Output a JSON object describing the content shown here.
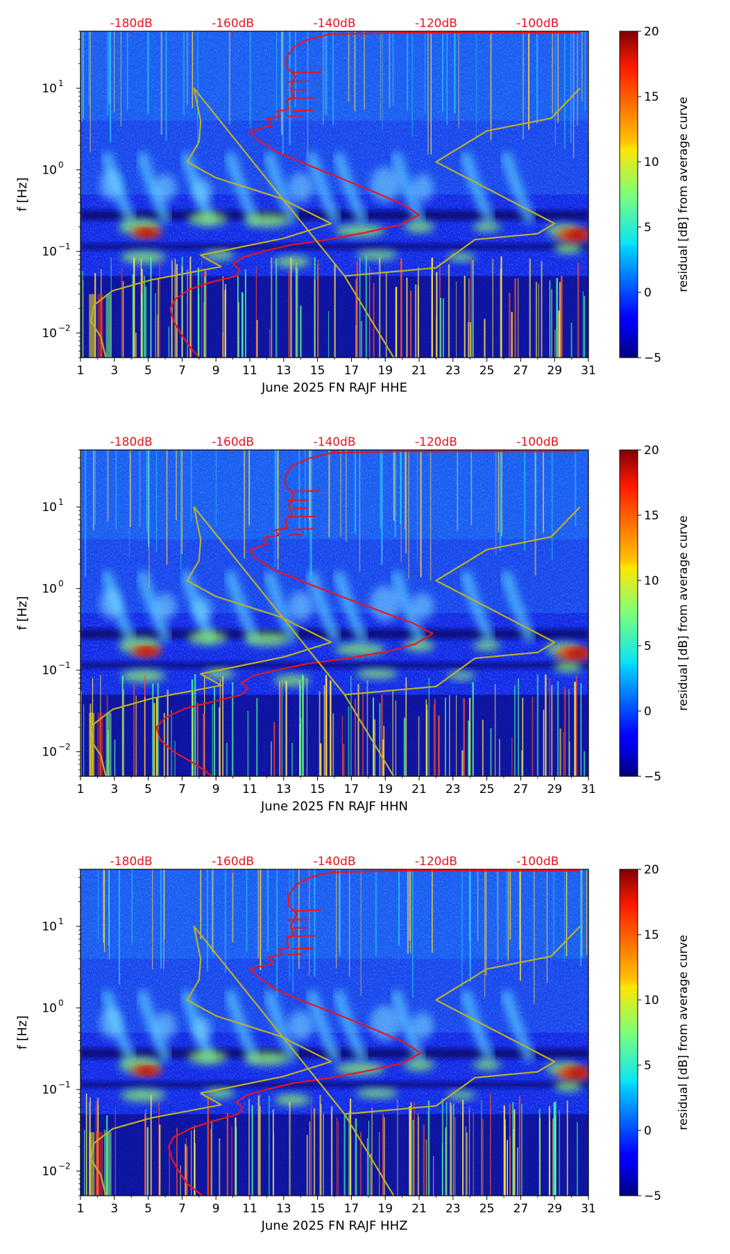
{
  "chart_data": [
    {
      "type": "heatmap",
      "title": "",
      "xlabel": "June 2025 FN RAJF  HHE",
      "ylabel": "f [Hz]",
      "x_ticks": [
        "1",
        "3",
        "5",
        "7",
        "9",
        "11",
        "13",
        "15",
        "17",
        "19",
        "21",
        "23",
        "25",
        "27",
        "29",
        "31"
      ],
      "xlim": [
        1,
        31
      ],
      "ylim": [
        0.005,
        50
      ],
      "y_scale": "log",
      "y_ticks": [
        {
          "value": 0.01,
          "base": "10",
          "exp": "−2"
        },
        {
          "value": 0.1,
          "base": "10",
          "exp": "−1"
        },
        {
          "value": 1,
          "base": "10",
          "exp": "0"
        },
        {
          "value": 10,
          "base": "10",
          "exp": "1"
        }
      ],
      "top_axis_labels": [
        "-180dB",
        "-160dB",
        "-140dB",
        "-120dB",
        "-100dB"
      ],
      "top_axis_values": [
        4,
        10,
        16,
        22,
        28
      ],
      "colorbar": {
        "label": "residual [dB] from average curve",
        "ticks": [
          "20",
          "15",
          "10",
          "5",
          "0",
          "−5"
        ],
        "range": [
          -5,
          20
        ]
      },
      "series": [
        {
          "name": "average PSD",
          "color": "#e8141e",
          "points": [
            [
              8.0,
              0.005
            ],
            [
              7.4,
              0.007
            ],
            [
              6.9,
              0.01
            ],
            [
              6.5,
              0.014
            ],
            [
              6.3,
              0.02
            ],
            [
              6.6,
              0.026
            ],
            [
              7.4,
              0.034
            ],
            [
              8.7,
              0.042
            ],
            [
              10.2,
              0.05
            ],
            [
              10.4,
              0.06
            ],
            [
              10.0,
              0.07
            ],
            [
              10.6,
              0.085
            ],
            [
              11.8,
              0.1
            ],
            [
              13.4,
              0.12
            ],
            [
              15.6,
              0.14
            ],
            [
              17.8,
              0.17
            ],
            [
              19.8,
              0.21
            ],
            [
              21.0,
              0.28
            ],
            [
              20.0,
              0.38
            ],
            [
              18.5,
              0.52
            ],
            [
              16.3,
              0.8
            ],
            [
              14.2,
              1.2
            ],
            [
              12.5,
              1.7
            ],
            [
              11.4,
              2.4
            ],
            [
              11.0,
              3.0
            ],
            [
              12.3,
              3.5
            ],
            [
              12.0,
              4.2
            ],
            [
              12.8,
              4.5
            ],
            [
              12.6,
              5.2
            ],
            [
              13.3,
              5.5
            ],
            [
              13.2,
              7.0
            ],
            [
              13.6,
              8.0
            ],
            [
              13.4,
              10
            ],
            [
              13.7,
              14
            ],
            [
              13.2,
              18
            ],
            [
              13.2,
              24
            ],
            [
              13.6,
              32
            ],
            [
              14.5,
              40
            ],
            [
              15.7,
              46
            ],
            [
              20,
              48
            ],
            [
              30.5,
              48
            ]
          ]
        },
        {
          "name": "noise model",
          "color": "#bdb126",
          "points": [
            [
              2.5,
              0.005
            ],
            [
              2.2,
              0.009
            ],
            [
              1.6,
              0.014
            ],
            [
              1.8,
              0.022
            ],
            [
              2.9,
              0.033
            ],
            [
              5.2,
              0.045
            ],
            [
              9.3,
              0.065
            ],
            [
              8.1,
              0.09
            ],
            [
              13.0,
              0.145
            ],
            [
              15.8,
              0.22
            ],
            [
              12.8,
              0.45
            ],
            [
              9.0,
              0.8
            ],
            [
              7.3,
              1.25
            ],
            [
              8.0,
              2.2
            ],
            [
              8.1,
              4.0
            ],
            [
              7.7,
              10
            ],
            [
              16.6,
              0.05
            ],
            [
              19.5,
              0.005
            ],
            [
              16.6,
              0.05
            ],
            [
              22.0,
              0.063
            ],
            [
              24.3,
              0.14
            ],
            [
              28.0,
              0.165
            ],
            [
              29.0,
              0.22
            ],
            [
              22.0,
              1.25
            ],
            [
              25.0,
              3.0
            ],
            [
              28.8,
              4.3
            ],
            [
              30.5,
              10
            ]
          ]
        }
      ]
    },
    {
      "type": "heatmap",
      "title": "",
      "xlabel": "June 2025 FN RAJF  HHN",
      "ylabel": "f [Hz]",
      "x_ticks": [
        "1",
        "3",
        "5",
        "7",
        "9",
        "11",
        "13",
        "15",
        "17",
        "19",
        "21",
        "23",
        "25",
        "27",
        "29",
        "31"
      ],
      "xlim": [
        1,
        31
      ],
      "ylim": [
        0.005,
        50
      ],
      "y_scale": "log",
      "y_ticks": [
        {
          "value": 0.01,
          "base": "10",
          "exp": "−2"
        },
        {
          "value": 0.1,
          "base": "10",
          "exp": "−1"
        },
        {
          "value": 1,
          "base": "10",
          "exp": "0"
        },
        {
          "value": 10,
          "base": "10",
          "exp": "1"
        }
      ],
      "top_axis_labels": [
        "-180dB",
        "-160dB",
        "-140dB",
        "-120dB",
        "-100dB"
      ],
      "top_axis_values": [
        4,
        10,
        16,
        22,
        28
      ],
      "colorbar": {
        "label": "residual [dB] from average curve",
        "ticks": [
          "20",
          "15",
          "10",
          "5",
          "0",
          "−5"
        ],
        "range": [
          -5,
          20
        ]
      },
      "series": [
        {
          "name": "average PSD",
          "color": "#e8141e",
          "points": [
            [
              8.8,
              0.005
            ],
            [
              7.8,
              0.007
            ],
            [
              6.5,
              0.01
            ],
            [
              5.7,
              0.014
            ],
            [
              5.5,
              0.02
            ],
            [
              6.0,
              0.026
            ],
            [
              7.2,
              0.034
            ],
            [
              9.0,
              0.042
            ],
            [
              10.5,
              0.05
            ],
            [
              10.9,
              0.06
            ],
            [
              10.5,
              0.07
            ],
            [
              11.2,
              0.085
            ],
            [
              12.6,
              0.1
            ],
            [
              14.4,
              0.12
            ],
            [
              16.8,
              0.14
            ],
            [
              19.2,
              0.17
            ],
            [
              20.8,
              0.21
            ],
            [
              21.8,
              0.28
            ],
            [
              20.6,
              0.38
            ],
            [
              18.8,
              0.52
            ],
            [
              16.4,
              0.8
            ],
            [
              14.2,
              1.2
            ],
            [
              12.4,
              1.7
            ],
            [
              11.3,
              2.4
            ],
            [
              11.0,
              3.0
            ],
            [
              12.0,
              3.5
            ],
            [
              11.8,
              4.2
            ],
            [
              12.7,
              4.5
            ],
            [
              12.5,
              5.2
            ],
            [
              13.2,
              5.5
            ],
            [
              13.1,
              7.0
            ],
            [
              13.5,
              8.0
            ],
            [
              13.3,
              10
            ],
            [
              13.6,
              14
            ],
            [
              13.1,
              18
            ],
            [
              13.1,
              24
            ],
            [
              13.5,
              32
            ],
            [
              14.6,
              40
            ],
            [
              15.8,
              46
            ],
            [
              20,
              48
            ],
            [
              30.5,
              48
            ]
          ]
        },
        {
          "name": "noise model",
          "color": "#bdb126",
          "points": [
            [
              2.5,
              0.005
            ],
            [
              2.2,
              0.009
            ],
            [
              1.6,
              0.014
            ],
            [
              1.8,
              0.022
            ],
            [
              2.9,
              0.033
            ],
            [
              5.2,
              0.045
            ],
            [
              9.3,
              0.065
            ],
            [
              8.1,
              0.09
            ],
            [
              13.0,
              0.145
            ],
            [
              15.8,
              0.22
            ],
            [
              12.8,
              0.45
            ],
            [
              9.0,
              0.8
            ],
            [
              7.3,
              1.25
            ],
            [
              8.0,
              2.2
            ],
            [
              8.1,
              4.0
            ],
            [
              7.7,
              10
            ],
            [
              16.6,
              0.05
            ],
            [
              19.5,
              0.005
            ],
            [
              16.6,
              0.05
            ],
            [
              22.0,
              0.063
            ],
            [
              24.3,
              0.14
            ],
            [
              28.0,
              0.165
            ],
            [
              29.0,
              0.22
            ],
            [
              22.0,
              1.25
            ],
            [
              25.0,
              3.0
            ],
            [
              28.8,
              4.3
            ],
            [
              30.5,
              10
            ]
          ]
        }
      ]
    },
    {
      "type": "heatmap",
      "title": "",
      "xlabel": "June 2025 FN RAJF  HHZ",
      "ylabel": "f [Hz]",
      "x_ticks": [
        "1",
        "3",
        "5",
        "7",
        "9",
        "11",
        "13",
        "15",
        "17",
        "19",
        "21",
        "23",
        "25",
        "27",
        "29",
        "31"
      ],
      "xlim": [
        1,
        31
      ],
      "ylim": [
        0.005,
        50
      ],
      "y_scale": "log",
      "y_ticks": [
        {
          "value": 0.01,
          "base": "10",
          "exp": "−2"
        },
        {
          "value": 0.1,
          "base": "10",
          "exp": "−1"
        },
        {
          "value": 1,
          "base": "10",
          "exp": "0"
        },
        {
          "value": 10,
          "base": "10",
          "exp": "1"
        }
      ],
      "top_axis_labels": [
        "-180dB",
        "-160dB",
        "-140dB",
        "-120dB",
        "-100dB"
      ],
      "top_axis_values": [
        4,
        10,
        16,
        22,
        28
      ],
      "colorbar": {
        "label": "residual [dB] from average curve",
        "ticks": [
          "20",
          "15",
          "10",
          "5",
          "0",
          "−5"
        ],
        "range": [
          -5,
          20
        ]
      },
      "series": [
        {
          "name": "average PSD",
          "color": "#e8141e",
          "points": [
            [
              8.2,
              0.005
            ],
            [
              7.3,
              0.007
            ],
            [
              6.8,
              0.01
            ],
            [
              6.4,
              0.014
            ],
            [
              6.2,
              0.02
            ],
            [
              6.5,
              0.026
            ],
            [
              7.6,
              0.034
            ],
            [
              9.0,
              0.042
            ],
            [
              10.3,
              0.05
            ],
            [
              10.6,
              0.06
            ],
            [
              10.2,
              0.07
            ],
            [
              10.8,
              0.085
            ],
            [
              12.0,
              0.1
            ],
            [
              13.6,
              0.12
            ],
            [
              15.8,
              0.14
            ],
            [
              18.0,
              0.17
            ],
            [
              20.0,
              0.21
            ],
            [
              21.1,
              0.28
            ],
            [
              20.1,
              0.38
            ],
            [
              18.6,
              0.52
            ],
            [
              16.4,
              0.8
            ],
            [
              14.2,
              1.2
            ],
            [
              12.5,
              1.7
            ],
            [
              11.5,
              2.4
            ],
            [
              11.0,
              3.0
            ],
            [
              12.4,
              3.5
            ],
            [
              12.1,
              4.2
            ],
            [
              12.9,
              4.5
            ],
            [
              12.7,
              5.2
            ],
            [
              13.3,
              5.5
            ],
            [
              13.2,
              7.0
            ],
            [
              13.6,
              8.0
            ],
            [
              13.4,
              10
            ],
            [
              13.8,
              14
            ],
            [
              13.3,
              18
            ],
            [
              13.3,
              24
            ],
            [
              13.7,
              32
            ],
            [
              14.6,
              40
            ],
            [
              15.8,
              46
            ],
            [
              20,
              48
            ],
            [
              30.5,
              48
            ]
          ]
        },
        {
          "name": "noise model",
          "color": "#bdb126",
          "points": [
            [
              2.5,
              0.005
            ],
            [
              2.2,
              0.009
            ],
            [
              1.6,
              0.014
            ],
            [
              1.8,
              0.022
            ],
            [
              2.9,
              0.033
            ],
            [
              5.2,
              0.045
            ],
            [
              9.3,
              0.065
            ],
            [
              8.1,
              0.09
            ],
            [
              13.0,
              0.145
            ],
            [
              15.8,
              0.22
            ],
            [
              12.8,
              0.45
            ],
            [
              9.0,
              0.8
            ],
            [
              7.3,
              1.25
            ],
            [
              8.0,
              2.2
            ],
            [
              8.1,
              4.0
            ],
            [
              7.7,
              10
            ],
            [
              16.6,
              0.05
            ],
            [
              19.5,
              0.005
            ],
            [
              16.6,
              0.05
            ],
            [
              22.0,
              0.063
            ],
            [
              24.3,
              0.14
            ],
            [
              28.0,
              0.165
            ],
            [
              29.0,
              0.22
            ],
            [
              22.0,
              1.25
            ],
            [
              25.0,
              3.0
            ],
            [
              28.8,
              4.3
            ],
            [
              30.5,
              10
            ]
          ]
        }
      ]
    }
  ]
}
